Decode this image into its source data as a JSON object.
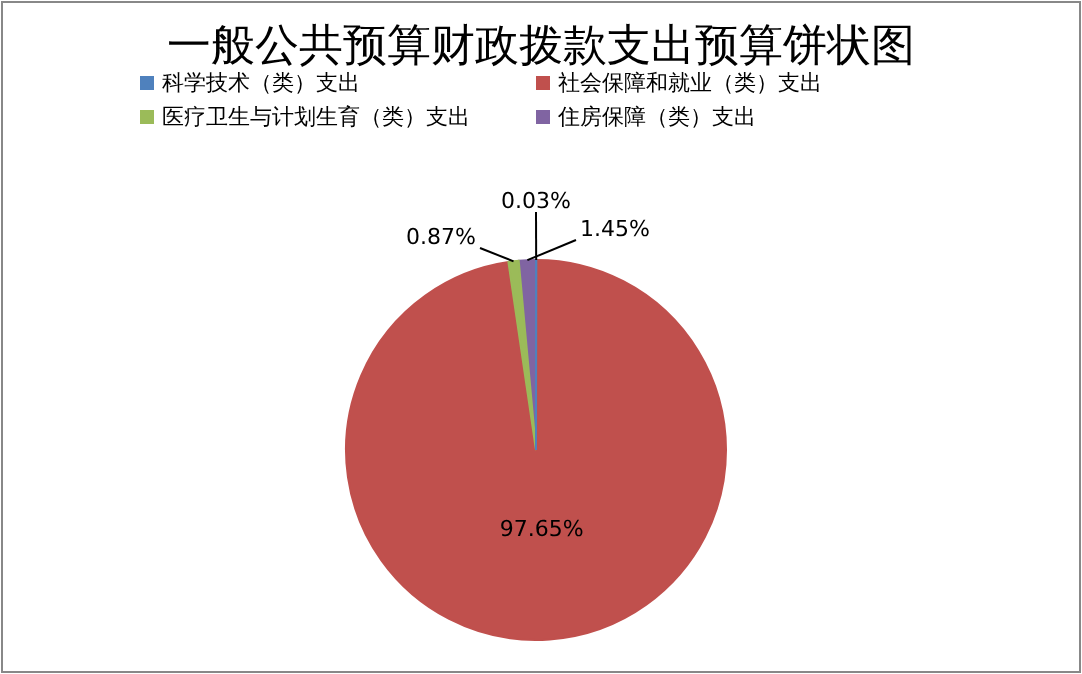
{
  "chart_data": {
    "type": "pie",
    "title": "一般公共预算财政拨款支出预算饼状图",
    "categories": [
      "科学技术（类）支出",
      "社会保障和就业（类）支出",
      "医疗卫生与计划生育（类）支出",
      "住房保障（类）支出"
    ],
    "values": [
      0.03,
      97.65,
      0.87,
      1.45
    ],
    "colors": [
      "#4f81bd",
      "#c0504d",
      "#9bbb59",
      "#8064a2"
    ],
    "value_labels": [
      "0.03%",
      "97.65%",
      "0.87%",
      "1.45%"
    ],
    "legend": "top left"
  }
}
